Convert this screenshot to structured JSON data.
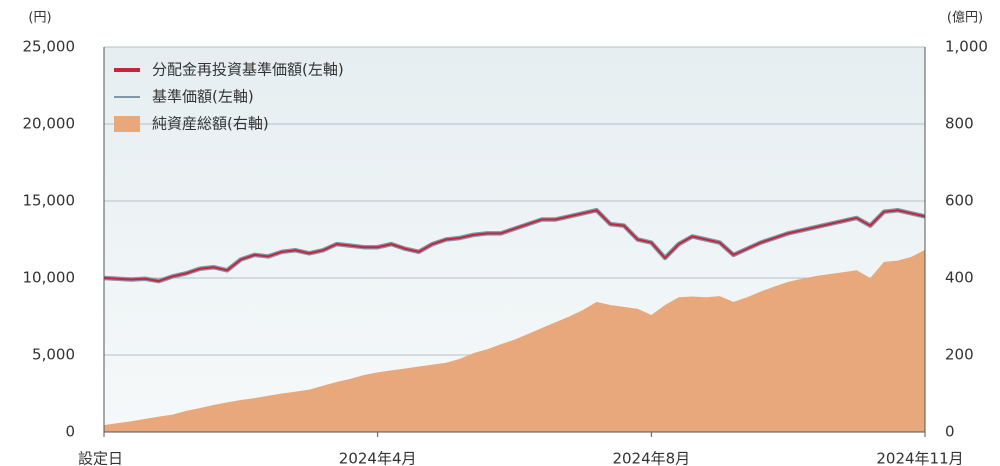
{
  "chart_data": {
    "type": "line",
    "y_unit_label": "(円)",
    "y2_unit_label": "(億円)",
    "categories": [
      "設定日",
      null,
      null,
      null,
      null,
      null,
      null,
      null,
      null,
      null,
      null,
      null,
      null,
      null,
      null,
      null,
      null,
      null,
      null,
      null,
      "2024年4月",
      null,
      null,
      null,
      null,
      null,
      null,
      null,
      null,
      null,
      null,
      null,
      null,
      null,
      null,
      null,
      null,
      null,
      null,
      null,
      "2024年8月",
      null,
      null,
      null,
      null,
      null,
      null,
      null,
      null,
      null,
      null,
      null,
      null,
      null,
      null,
      null,
      null,
      null,
      null,
      null,
      "2024年11月"
    ],
    "series": [
      {
        "name": "分配金再投資基準価額(左軸)",
        "color": "#c8243c",
        "axis": "y",
        "values": [
          10000,
          9950,
          9900,
          9950,
          9800,
          10100,
          10300,
          10600,
          10700,
          10500,
          11200,
          11500,
          11400,
          11700,
          11800,
          11600,
          11800,
          12200,
          12100,
          12000,
          12000,
          12200,
          11900,
          11700,
          12200,
          12500,
          12600,
          12800,
          12900,
          12900,
          13200,
          13500,
          13800,
          13800,
          14000,
          14200,
          14400,
          13500,
          13400,
          12500,
          12300,
          11300,
          12200,
          12700,
          12500,
          12300,
          11500,
          11900,
          12300,
          12600,
          12900,
          13100,
          13300,
          13500,
          13700,
          13900,
          13400,
          14300,
          14400,
          14200,
          14000
        ]
      },
      {
        "name": "基準価額(左軸)",
        "color": "#7f97a8",
        "axis": "y",
        "values": [
          10000,
          9950,
          9900,
          9950,
          9800,
          10100,
          10300,
          10600,
          10700,
          10500,
          11200,
          11500,
          11400,
          11700,
          11800,
          11600,
          11800,
          12200,
          12100,
          12000,
          12000,
          12200,
          11900,
          11700,
          12200,
          12500,
          12600,
          12800,
          12900,
          12900,
          13200,
          13500,
          13800,
          13800,
          14000,
          14200,
          14400,
          13500,
          13400,
          12500,
          12300,
          11300,
          12200,
          12700,
          12500,
          12300,
          11500,
          11900,
          12300,
          12600,
          12900,
          13100,
          13300,
          13500,
          13700,
          13900,
          13400,
          14300,
          14400,
          14200,
          14000
        ]
      },
      {
        "name": "純資産総額(右軸)",
        "color": "#e9a87c",
        "axis": "y2",
        "type": "area",
        "values": [
          18,
          23,
          28,
          34,
          40,
          45,
          55,
          62,
          70,
          77,
          83,
          88,
          94,
          100,
          105,
          110,
          120,
          130,
          138,
          148,
          155,
          160,
          165,
          170,
          175,
          180,
          190,
          205,
          215,
          228,
          240,
          255,
          270,
          285,
          300,
          317,
          338,
          330,
          325,
          320,
          304,
          330,
          350,
          352,
          350,
          353,
          338,
          350,
          365,
          378,
          390,
          398,
          405,
          410,
          415,
          420,
          400,
          442,
          445,
          455,
          473
        ]
      }
    ],
    "ylim": [
      0,
      25000
    ],
    "yticks": [
      0,
      {
        "value": 5000,
        "label": "5,000"
      },
      {
        "value": 10000,
        "label": "10,000"
      },
      {
        "value": 15000,
        "label": "15,000"
      },
      {
        "value": 20000,
        "label": "20,000"
      },
      {
        "value": 25000,
        "label": "25,000"
      }
    ],
    "y2lim": [
      0,
      1000
    ],
    "y2ticks": [
      0,
      200,
      400,
      600,
      800,
      {
        "value": 1000,
        "label": "1,000"
      }
    ],
    "grid": true,
    "legend": "upper-left"
  }
}
